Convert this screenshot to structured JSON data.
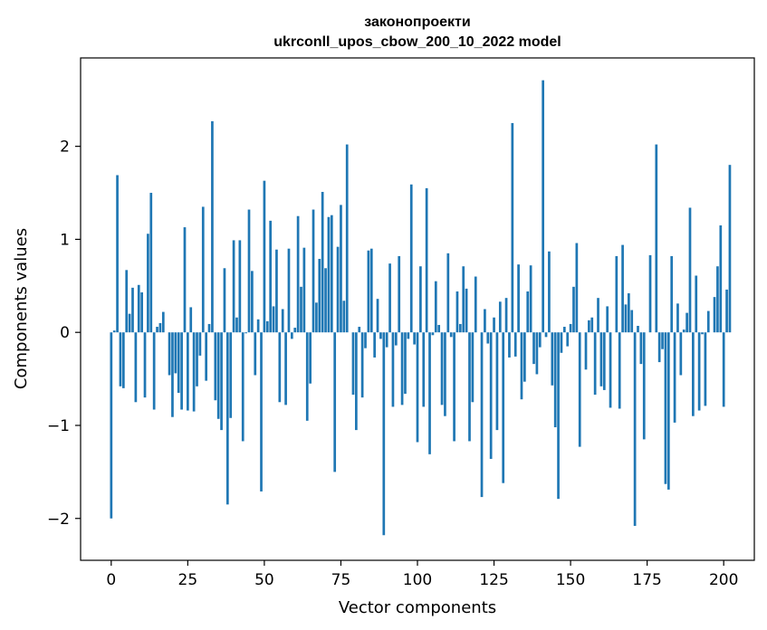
{
  "chart_data": {
    "type": "bar",
    "title": "законопроекти",
    "subtitle": "ukrconll_upos_cbow_200_10_2022 model",
    "xlabel": "Vector components",
    "ylabel": "Components values",
    "xlim": [
      -10,
      210
    ],
    "ylim": [
      -2.45,
      2.95
    ],
    "xticks": [
      0,
      25,
      50,
      75,
      100,
      125,
      150,
      175,
      200
    ],
    "yticks": [
      -2,
      -1,
      0,
      1,
      2
    ],
    "xtick_labels": [
      "0",
      "25",
      "50",
      "75",
      "100",
      "125",
      "150",
      "175",
      "200"
    ],
    "ytick_labels": [
      "−2",
      "−1",
      "0",
      "1",
      "2"
    ],
    "grid": false,
    "bar_color": "#1f77b4",
    "values": [
      -2.0,
      0.02,
      1.69,
      -0.58,
      -0.6,
      0.67,
      0.2,
      0.48,
      -0.75,
      0.51,
      0.43,
      -0.7,
      1.06,
      1.5,
      -0.83,
      0.06,
      0.1,
      0.22,
      0.0,
      -0.46,
      -0.91,
      -0.44,
      -0.65,
      -0.83,
      1.13,
      -0.84,
      0.27,
      -0.85,
      -0.58,
      -0.25,
      1.35,
      -0.52,
      0.09,
      2.27,
      -0.73,
      -0.93,
      -1.05,
      0.69,
      -1.85,
      -0.92,
      0.99,
      0.16,
      0.99,
      -1.17,
      -0.01,
      1.32,
      0.66,
      -0.46,
      0.14,
      -1.71,
      1.63,
      0.12,
      1.2,
      0.28,
      0.89,
      -0.75,
      0.25,
      -0.78,
      0.9,
      -0.07,
      0.05,
      1.25,
      0.49,
      0.91,
      -0.95,
      -0.55,
      1.32,
      0.32,
      0.79,
      1.51,
      0.69,
      1.24,
      1.26,
      -1.5,
      0.92,
      1.37,
      0.34,
      2.02,
      0.0,
      -0.67,
      -1.05,
      0.06,
      -0.7,
      -0.17,
      0.88,
      0.9,
      -0.27,
      0.36,
      -0.07,
      -2.18,
      -0.16,
      0.74,
      -0.8,
      -0.14,
      0.82,
      -0.78,
      -0.66,
      -0.07,
      1.59,
      -0.13,
      -1.18,
      0.71,
      -0.8,
      1.55,
      -1.31,
      -0.03,
      0.55,
      0.08,
      -0.78,
      -0.9,
      0.85,
      -0.05,
      -1.17,
      0.44,
      0.09,
      0.71,
      0.47,
      -1.17,
      -0.75,
      0.6,
      0.0,
      -1.77,
      0.25,
      -0.12,
      -1.36,
      0.16,
      -1.05,
      0.33,
      -1.62,
      0.37,
      -0.27,
      2.25,
      -0.26,
      0.73,
      -0.72,
      -0.53,
      0.44,
      0.72,
      -0.34,
      -0.45,
      -0.16,
      2.71,
      -0.05,
      0.87,
      -0.57,
      -1.02,
      -1.79,
      -0.22,
      0.06,
      -0.15,
      0.09,
      0.49,
      0.96,
      -1.23,
      0.0,
      -0.4,
      0.13,
      0.16,
      -0.67,
      0.37,
      -0.58,
      -0.62,
      0.28,
      -0.81,
      0.0,
      0.82,
      -0.82,
      0.94,
      0.3,
      0.42,
      0.24,
      -2.08,
      0.07,
      -0.34,
      -1.15,
      0.0,
      0.83,
      0.0,
      2.02,
      -0.32,
      -0.18,
      -1.63,
      -1.69,
      0.82,
      -0.97,
      0.31,
      -0.46,
      0.03,
      0.21,
      1.34,
      -0.9,
      0.61,
      -0.84,
      -0.02,
      -0.79,
      0.23,
      0.0,
      0.38,
      0.71,
      1.15,
      -0.8,
      0.46,
      1.8
    ]
  }
}
